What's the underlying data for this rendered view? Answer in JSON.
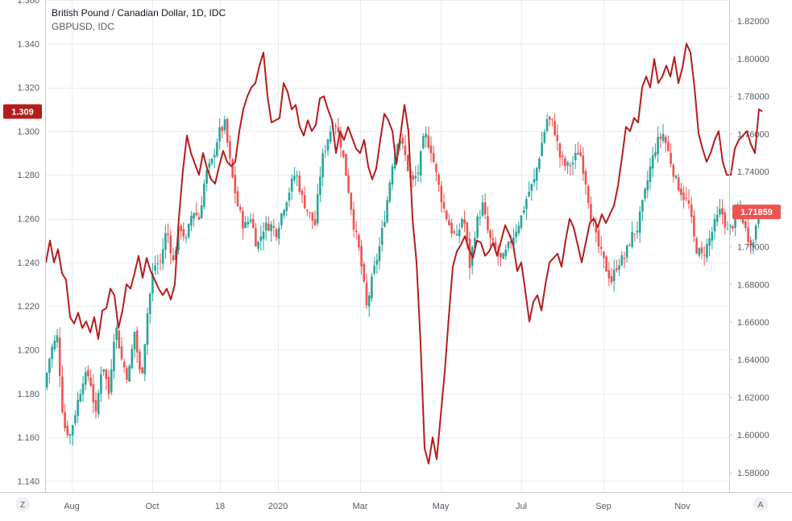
{
  "legend": {
    "title": "British Pound / Canadian Dollar, 1D, IDC",
    "subtitle": "GBPUSD, IDC"
  },
  "buttons": {
    "left": "Z",
    "right": "A"
  },
  "colors": {
    "up": "#26a69a",
    "down": "#ef5350",
    "overlay": "#b71c1c",
    "left_label_bg": "#b71c1c",
    "right_label_bg": "#ef5350",
    "grid": "#e9ecf0",
    "axis_text": "#555a66"
  },
  "chart_data": {
    "type": "candlestick",
    "title": "British Pound / Canadian Dollar, 1D, IDC",
    "x_ticks": [
      "Aug",
      "Oct",
      "18",
      "2020",
      "Mar",
      "May",
      "Jul",
      "Sep",
      "Nov"
    ],
    "left_axis": {
      "label_series": "GBPUSD, IDC",
      "ylim": [
        1.135,
        1.36
      ],
      "ticks": [
        "1.140",
        "1.160",
        "1.180",
        "1.200",
        "1.220",
        "1.240",
        "1.260",
        "1.280",
        "1.300",
        "1.320",
        "1.340",
        "1.360"
      ],
      "last_value_label": "1.309"
    },
    "right_axis": {
      "label_series": "British Pound / Canadian Dollar",
      "ylim": [
        1.5697,
        1.8312
      ],
      "ticks": [
        "1.58000",
        "1.60000",
        "1.62000",
        "1.64000",
        "1.66000",
        "1.68000",
        "1.70000",
        "1.72000",
        "1.74000",
        "1.76000",
        "1.78000",
        "1.80000",
        "1.82000"
      ],
      "last_value_label": "1.71859"
    },
    "series": [
      {
        "name": "British Pound / Canadian Dollar",
        "kind": "candles",
        "axis": "right",
        "close_path": [
          [
            0,
            1.625
          ],
          [
            8,
            1.645
          ],
          [
            16,
            1.652
          ],
          [
            24,
            1.605
          ],
          [
            32,
            1.6
          ],
          [
            40,
            1.615
          ],
          [
            48,
            1.63
          ],
          [
            56,
            1.632
          ],
          [
            64,
            1.61
          ],
          [
            72,
            1.64
          ],
          [
            80,
            1.622
          ],
          [
            88,
            1.66
          ],
          [
            96,
            1.64
          ],
          [
            104,
            1.63
          ],
          [
            112,
            1.655
          ],
          [
            120,
            1.628
          ],
          [
            128,
            1.665
          ],
          [
            136,
            1.69
          ],
          [
            144,
            1.692
          ],
          [
            152,
            1.71
          ],
          [
            160,
            1.692
          ],
          [
            168,
            1.712
          ],
          [
            176,
            1.703
          ],
          [
            184,
            1.72
          ],
          [
            192,
            1.715
          ],
          [
            200,
            1.738
          ],
          [
            208,
            1.745
          ],
          [
            216,
            1.76
          ],
          [
            224,
            1.765
          ],
          [
            232,
            1.74
          ],
          [
            240,
            1.722
          ],
          [
            248,
            1.71
          ],
          [
            256,
            1.716
          ],
          [
            264,
            1.7
          ],
          [
            272,
            1.71
          ],
          [
            280,
            1.712
          ],
          [
            288,
            1.708
          ],
          [
            296,
            1.72
          ],
          [
            304,
            1.73
          ],
          [
            312,
            1.74
          ],
          [
            320,
            1.726
          ],
          [
            328,
            1.718
          ],
          [
            336,
            1.712
          ],
          [
            344,
            1.745
          ],
          [
            352,
            1.758
          ],
          [
            360,
            1.768
          ],
          [
            368,
            1.755
          ],
          [
            376,
            1.735
          ],
          [
            384,
            1.712
          ],
          [
            392,
            1.695
          ],
          [
            400,
            1.668
          ],
          [
            408,
            1.685
          ],
          [
            416,
            1.7
          ],
          [
            424,
            1.72
          ],
          [
            432,
            1.745
          ],
          [
            440,
            1.76
          ],
          [
            448,
            1.748
          ],
          [
            456,
            1.733
          ],
          [
            464,
            1.74
          ],
          [
            472,
            1.76
          ],
          [
            480,
            1.752
          ],
          [
            488,
            1.735
          ],
          [
            496,
            1.72
          ],
          [
            504,
            1.71
          ],
          [
            512,
            1.704
          ],
          [
            520,
            1.718
          ],
          [
            528,
            1.69
          ],
          [
            536,
            1.712
          ],
          [
            544,
            1.722
          ],
          [
            552,
            1.705
          ],
          [
            560,
            1.698
          ],
          [
            568,
            1.692
          ],
          [
            576,
            1.7
          ],
          [
            584,
            1.708
          ],
          [
            592,
            1.716
          ],
          [
            600,
            1.728
          ],
          [
            608,
            1.735
          ],
          [
            616,
            1.752
          ],
          [
            624,
            1.768
          ],
          [
            632,
            1.765
          ],
          [
            640,
            1.748
          ],
          [
            648,
            1.742
          ],
          [
            656,
            1.745
          ],
          [
            664,
            1.752
          ],
          [
            672,
            1.735
          ],
          [
            680,
            1.712
          ],
          [
            688,
            1.7
          ],
          [
            696,
            1.69
          ],
          [
            704,
            1.682
          ],
          [
            712,
            1.692
          ],
          [
            720,
            1.694
          ],
          [
            728,
            1.705
          ],
          [
            736,
            1.71
          ],
          [
            744,
            1.725
          ],
          [
            752,
            1.742
          ],
          [
            760,
            1.755
          ],
          [
            768,
            1.76
          ],
          [
            776,
            1.748
          ],
          [
            784,
            1.735
          ],
          [
            792,
            1.728
          ],
          [
            800,
            1.722
          ],
          [
            808,
            1.7
          ],
          [
            816,
            1.695
          ],
          [
            824,
            1.702
          ],
          [
            832,
            1.712
          ],
          [
            840,
            1.72
          ],
          [
            848,
            1.708
          ],
          [
            856,
            1.713
          ],
          [
            864,
            1.72
          ],
          [
            872,
            1.706
          ],
          [
            880,
            1.702
          ],
          [
            885,
            1.718
          ],
          [
            889,
            1.718
          ]
        ],
        "last": 1.71859
      },
      {
        "name": "GBPUSD, IDC",
        "kind": "line",
        "axis": "left",
        "path": [
          [
            0,
            1.24
          ],
          [
            5,
            1.25
          ],
          [
            10,
            1.24
          ],
          [
            15,
            1.246
          ],
          [
            20,
            1.235
          ],
          [
            25,
            1.232
          ],
          [
            30,
            1.215
          ],
          [
            35,
            1.212
          ],
          [
            40,
            1.217
          ],
          [
            45,
            1.21
          ],
          [
            50,
            1.213
          ],
          [
            55,
            1.208
          ],
          [
            60,
            1.215
          ],
          [
            65,
            1.205
          ],
          [
            70,
            1.218
          ],
          [
            75,
            1.219
          ],
          [
            80,
            1.228
          ],
          [
            85,
            1.225
          ],
          [
            90,
            1.21
          ],
          [
            95,
            1.218
          ],
          [
            100,
            1.23
          ],
          [
            105,
            1.228
          ],
          [
            110,
            1.235
          ],
          [
            115,
            1.243
          ],
          [
            120,
            1.233
          ],
          [
            125,
            1.242
          ],
          [
            130,
            1.236
          ],
          [
            135,
            1.232
          ],
          [
            140,
            1.228
          ],
          [
            145,
            1.225
          ],
          [
            150,
            1.228
          ],
          [
            155,
            1.223
          ],
          [
            160,
            1.23
          ],
          [
            165,
            1.26
          ],
          [
            170,
            1.282
          ],
          [
            175,
            1.298
          ],
          [
            180,
            1.29
          ],
          [
            185,
            1.285
          ],
          [
            190,
            1.28
          ],
          [
            195,
            1.29
          ],
          [
            200,
            1.283
          ],
          [
            205,
            1.278
          ],
          [
            210,
            1.276
          ],
          [
            215,
            1.284
          ],
          [
            220,
            1.291
          ],
          [
            225,
            1.286
          ],
          [
            230,
            1.284
          ],
          [
            235,
            1.286
          ],
          [
            240,
            1.3
          ],
          [
            245,
            1.31
          ],
          [
            250,
            1.316
          ],
          [
            255,
            1.32
          ],
          [
            260,
            1.322
          ],
          [
            265,
            1.33
          ],
          [
            270,
            1.336
          ],
          [
            275,
            1.316
          ],
          [
            280,
            1.304
          ],
          [
            285,
            1.305
          ],
          [
            290,
            1.306
          ],
          [
            295,
            1.322
          ],
          [
            300,
            1.318
          ],
          [
            305,
            1.31
          ],
          [
            310,
            1.312
          ],
          [
            315,
            1.302
          ],
          [
            320,
            1.298
          ],
          [
            325,
            1.305
          ],
          [
            330,
            1.3
          ],
          [
            335,
            1.303
          ],
          [
            340,
            1.315
          ],
          [
            345,
            1.316
          ],
          [
            350,
            1.31
          ],
          [
            355,
            1.305
          ],
          [
            360,
            1.29
          ],
          [
            365,
            1.3
          ],
          [
            370,
            1.296
          ],
          [
            375,
            1.302
          ],
          [
            380,
            1.297
          ],
          [
            385,
            1.292
          ],
          [
            390,
            1.29
          ],
          [
            395,
            1.296
          ],
          [
            400,
            1.284
          ],
          [
            405,
            1.278
          ],
          [
            410,
            1.283
          ],
          [
            415,
            1.296
          ],
          [
            420,
            1.308
          ],
          [
            425,
            1.305
          ],
          [
            430,
            1.3
          ],
          [
            435,
            1.285
          ],
          [
            440,
            1.298
          ],
          [
            445,
            1.312
          ],
          [
            450,
            1.3
          ],
          [
            455,
            1.26
          ],
          [
            460,
            1.24
          ],
          [
            465,
            1.203
          ],
          [
            470,
            1.155
          ],
          [
            475,
            1.148
          ],
          [
            480,
            1.16
          ],
          [
            485,
            1.15
          ],
          [
            490,
            1.17
          ],
          [
            495,
            1.19
          ],
          [
            500,
            1.215
          ],
          [
            505,
            1.238
          ],
          [
            510,
            1.245
          ],
          [
            515,
            1.248
          ],
          [
            520,
            1.252
          ],
          [
            525,
            1.246
          ],
          [
            530,
            1.242
          ],
          [
            535,
            1.25
          ],
          [
            540,
            1.249
          ],
          [
            545,
            1.243
          ],
          [
            550,
            1.245
          ],
          [
            555,
            1.249
          ],
          [
            560,
            1.243
          ],
          [
            565,
            1.25
          ],
          [
            570,
            1.257
          ],
          [
            575,
            1.253
          ],
          [
            580,
            1.248
          ],
          [
            585,
            1.236
          ],
          [
            590,
            1.24
          ],
          [
            595,
            1.227
          ],
          [
            600,
            1.213
          ],
          [
            605,
            1.222
          ],
          [
            610,
            1.225
          ],
          [
            615,
            1.218
          ],
          [
            620,
            1.23
          ],
          [
            625,
            1.24
          ],
          [
            630,
            1.242
          ],
          [
            635,
            1.244
          ],
          [
            640,
            1.238
          ],
          [
            645,
            1.25
          ],
          [
            650,
            1.26
          ],
          [
            655,
            1.256
          ],
          [
            660,
            1.248
          ],
          [
            665,
            1.24
          ],
          [
            670,
            1.249
          ],
          [
            675,
            1.258
          ],
          [
            680,
            1.26
          ],
          [
            685,
            1.256
          ],
          [
            690,
            1.262
          ],
          [
            695,
            1.258
          ],
          [
            700,
            1.262
          ],
          [
            705,
            1.266
          ],
          [
            710,
            1.275
          ],
          [
            715,
            1.288
          ],
          [
            720,
            1.302
          ],
          [
            725,
            1.3
          ],
          [
            730,
            1.306
          ],
          [
            735,
            1.304
          ],
          [
            740,
            1.32
          ],
          [
            745,
            1.325
          ],
          [
            750,
            1.32
          ],
          [
            755,
            1.333
          ],
          [
            760,
            1.322
          ],
          [
            765,
            1.325
          ],
          [
            770,
            1.33
          ],
          [
            775,
            1.325
          ],
          [
            780,
            1.334
          ],
          [
            785,
            1.322
          ],
          [
            790,
            1.329
          ],
          [
            795,
            1.34
          ],
          [
            800,
            1.336
          ],
          [
            805,
            1.32
          ],
          [
            810,
            1.299
          ],
          [
            815,
            1.292
          ],
          [
            820,
            1.286
          ],
          [
            825,
            1.29
          ],
          [
            830,
            1.296
          ],
          [
            835,
            1.3
          ],
          [
            840,
            1.286
          ],
          [
            845,
            1.28
          ],
          [
            850,
            1.28
          ],
          [
            855,
            1.292
          ],
          [
            860,
            1.296
          ],
          [
            865,
            1.298
          ],
          [
            870,
            1.3
          ],
          [
            875,
            1.294
          ],
          [
            880,
            1.29
          ],
          [
            885,
            1.31
          ],
          [
            889,
            1.309
          ]
        ],
        "last": 1.309
      }
    ],
    "grid": true,
    "legend_position": "top-left"
  }
}
